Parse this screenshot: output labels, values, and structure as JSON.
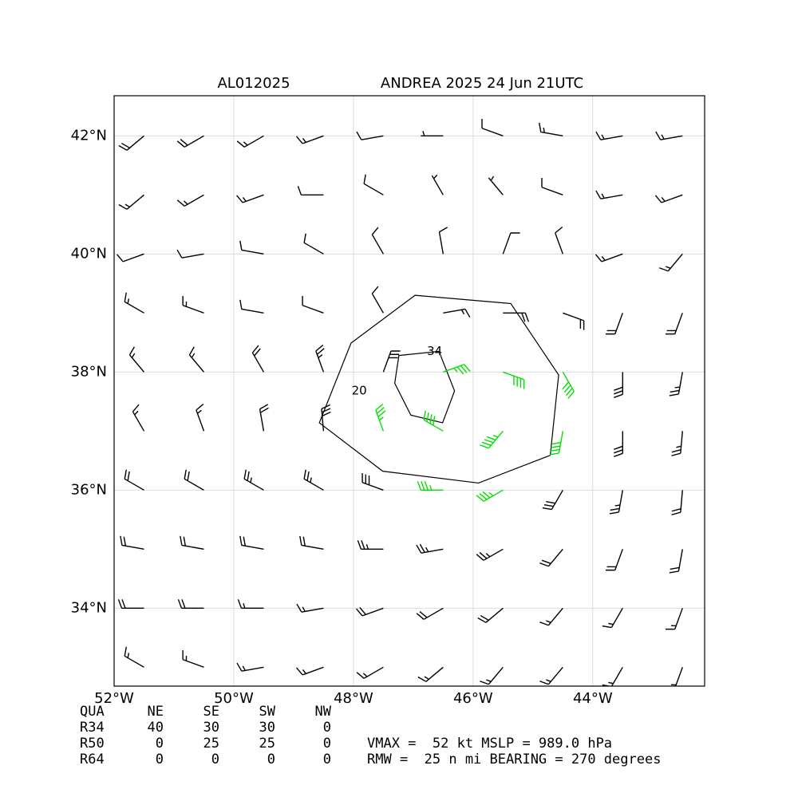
{
  "chart_data": {
    "type": "barbs",
    "title_left": "AL012025",
    "title": "ANDREA 2025 24 Jun 21UTC",
    "xlim": [
      -52,
      -42.13
    ],
    "ylim": [
      32.68,
      42.68
    ],
    "xticks": [
      {
        "value": -52,
        "label": "52°W"
      },
      {
        "value": -50,
        "label": "50°W"
      },
      {
        "value": -48,
        "label": "48°W"
      },
      {
        "value": -46,
        "label": "46°W"
      },
      {
        "value": -44,
        "label": "44°W"
      }
    ],
    "yticks": [
      {
        "value": 34,
        "label": "34°N"
      },
      {
        "value": 36,
        "label": "36°N"
      },
      {
        "value": 38,
        "label": "38°N"
      },
      {
        "value": 40,
        "label": "40°N"
      },
      {
        "value": 42,
        "label": "42°N"
      }
    ],
    "grid": true,
    "barb_colors": [
      {
        "min": 0,
        "color": "#000000"
      },
      {
        "min": 34,
        "color": "#00e000"
      },
      {
        "min": 50,
        "color": "#f0a000"
      }
    ],
    "barbs": {
      "lon": [
        -51.5,
        -50.5,
        -49.5,
        -48.5,
        -47.5,
        -46.5,
        -45.5,
        -44.5,
        -43.5,
        -42.5
      ],
      "lat": [
        42,
        41,
        40,
        39,
        38,
        37,
        36,
        35,
        34,
        33
      ],
      "direction": [
        [
          230,
          240,
          240,
          250,
          260,
          270,
          290,
          280,
          260,
          260
        ],
        [
          230,
          240,
          250,
          270,
          300,
          330,
          320,
          290,
          260,
          250
        ],
        [
          250,
          260,
          280,
          300,
          330,
          350,
          20,
          340,
          250,
          220
        ],
        [
          300,
          290,
          280,
          290,
          330,
          80,
          90,
          110,
          200,
          200
        ],
        [
          320,
          320,
          330,
          340,
          20,
          70,
          110,
          150,
          180,
          190
        ],
        [
          330,
          340,
          350,
          355,
          340,
          300,
          220,
          190,
          180,
          185
        ],
        [
          300,
          300,
          300,
          300,
          290,
          270,
          240,
          210,
          190,
          185
        ],
        [
          280,
          280,
          280,
          280,
          270,
          260,
          240,
          220,
          200,
          190
        ],
        [
          270,
          270,
          270,
          260,
          250,
          240,
          230,
          220,
          210,
          200
        ],
        [
          300,
          290,
          260,
          250,
          240,
          230,
          220,
          220,
          210,
          200
        ]
      ],
      "speed": [
        [
          20,
          20,
          15,
          15,
          10,
          5,
          10,
          15,
          15,
          15
        ],
        [
          15,
          15,
          15,
          10,
          10,
          5,
          5,
          10,
          15,
          15
        ],
        [
          10,
          10,
          10,
          10,
          10,
          10,
          10,
          10,
          15,
          15
        ],
        [
          15,
          15,
          10,
          10,
          10,
          15,
          20,
          20,
          20,
          20
        ],
        [
          15,
          15,
          20,
          25,
          30,
          35,
          40,
          40,
          30,
          25
        ],
        [
          15,
          15,
          20,
          30,
          35,
          40,
          45,
          40,
          30,
          25
        ],
        [
          20,
          20,
          25,
          25,
          30,
          35,
          35,
          30,
          25,
          20
        ],
        [
          20,
          20,
          20,
          20,
          25,
          25,
          25,
          20,
          20,
          20
        ],
        [
          20,
          20,
          15,
          15,
          20,
          20,
          20,
          15,
          15,
          15
        ],
        [
          15,
          15,
          15,
          15,
          15,
          15,
          15,
          15,
          15,
          15
        ]
      ]
    },
    "contours": [
      {
        "level": 20,
        "lon": [
          -48.57,
          -48.04,
          -46.97,
          -45.37,
          -44.57,
          -44.71,
          -45.91,
          -47.51
        ],
        "lat": [
          37.14,
          38.49,
          39.3,
          39.16,
          37.95,
          36.59,
          36.12,
          36.32
        ]
      },
      {
        "level": 34,
        "lon": [
          -47.31,
          -47.24,
          -46.57,
          -46.31,
          -46.51,
          -47.04
        ],
        "lat": [
          37.81,
          38.28,
          38.35,
          37.68,
          37.14,
          37.27
        ]
      }
    ],
    "table": {
      "header": [
        "QUA",
        "NE",
        "SE",
        "SW",
        "NW"
      ],
      "rows": [
        [
          "R34",
          40,
          30,
          30,
          0
        ],
        [
          "R50",
          0,
          25,
          25,
          0
        ],
        [
          "R64",
          0,
          0,
          0,
          0
        ]
      ]
    },
    "info": [
      "VMAX =  52 kt MSLP = 989.0 hPa",
      "RMW =  25 n mi BEARING = 270 degrees"
    ]
  }
}
